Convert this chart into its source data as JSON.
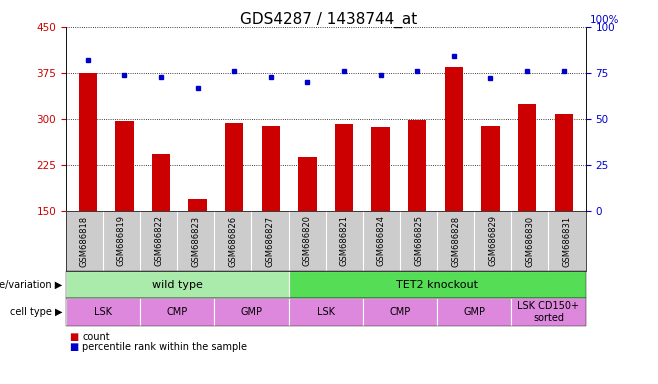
{
  "title": "GDS4287 / 1438744_at",
  "samples": [
    "GSM686818",
    "GSM686819",
    "GSM686822",
    "GSM686823",
    "GSM686826",
    "GSM686827",
    "GSM686820",
    "GSM686821",
    "GSM686824",
    "GSM686825",
    "GSM686828",
    "GSM686829",
    "GSM686830",
    "GSM686831"
  ],
  "counts": [
    375,
    296,
    243,
    170,
    293,
    288,
    238,
    292,
    287,
    299,
    385,
    288,
    325,
    308
  ],
  "percentiles": [
    82,
    74,
    73,
    67,
    76,
    73,
    70,
    76,
    74,
    76,
    84,
    72,
    76,
    76
  ],
  "ylim_left": [
    150,
    450
  ],
  "ylim_right": [
    0,
    100
  ],
  "yticks_left": [
    150,
    225,
    300,
    375,
    450
  ],
  "yticks_right": [
    0,
    25,
    50,
    75,
    100
  ],
  "bar_color": "#cc0000",
  "dot_color": "#0000cc",
  "bar_bottom": 150,
  "genotype_groups": [
    {
      "label": "wild type",
      "start": 0,
      "end": 6,
      "color": "#aaeaaa"
    },
    {
      "label": "TET2 knockout",
      "start": 6,
      "end": 14,
      "color": "#55dd55"
    }
  ],
  "cell_type_groups": [
    {
      "label": "LSK",
      "start": 0,
      "end": 2
    },
    {
      "label": "CMP",
      "start": 2,
      "end": 4
    },
    {
      "label": "GMP",
      "start": 4,
      "end": 6
    },
    {
      "label": "LSK",
      "start": 6,
      "end": 8
    },
    {
      "label": "CMP",
      "start": 8,
      "end": 10
    },
    {
      "label": "GMP",
      "start": 10,
      "end": 12
    },
    {
      "label": "LSK CD150+\nsorted",
      "start": 12,
      "end": 14
    }
  ],
  "cell_type_color": "#dd88dd",
  "sample_bg_color": "#cccccc",
  "tick_color_left": "#cc0000",
  "tick_color_right": "#0000cc",
  "title_fontsize": 11,
  "left_label_color": "#444444"
}
